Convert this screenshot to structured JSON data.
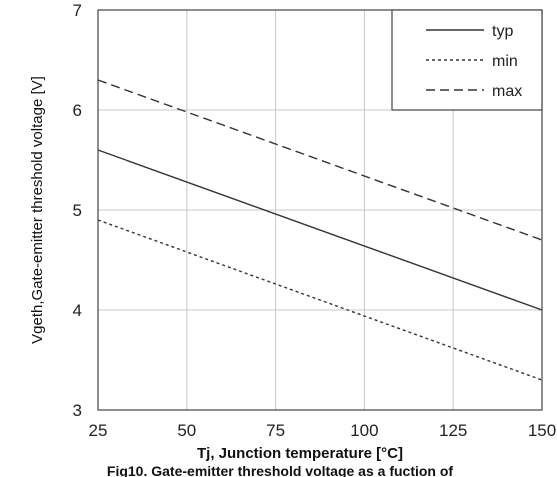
{
  "chart_data": {
    "type": "line",
    "title": "",
    "caption": "Fig10. Gate-emitter threshold voltage as a fuction of",
    "xlabel": "Tj, Junction temperature [°C]",
    "ylabel": "Vgeth,Gate-emitter threshold voltage [V]",
    "xlim": [
      25,
      150
    ],
    "ylim": [
      3,
      7
    ],
    "xticks": [
      25,
      50,
      75,
      100,
      125,
      150
    ],
    "yticks": [
      3,
      4,
      5,
      6,
      7
    ],
    "x_tick_labels": [
      "25",
      "50",
      "75",
      "100",
      "125",
      "150"
    ],
    "y_tick_labels": [
      "3",
      "4",
      "5",
      "6",
      "7"
    ],
    "grid": true,
    "legend_position": "top-right",
    "series": [
      {
        "name": "typ",
        "style": "solid",
        "color": "#333333",
        "x": [
          25,
          150
        ],
        "y": [
          5.6,
          4.0
        ]
      },
      {
        "name": "min",
        "style": "dotted",
        "color": "#333333",
        "x": [
          25,
          150
        ],
        "y": [
          4.9,
          3.3
        ]
      },
      {
        "name": "max",
        "style": "dashed",
        "color": "#333333",
        "x": [
          25,
          150
        ],
        "y": [
          6.3,
          4.7
        ]
      }
    ]
  }
}
